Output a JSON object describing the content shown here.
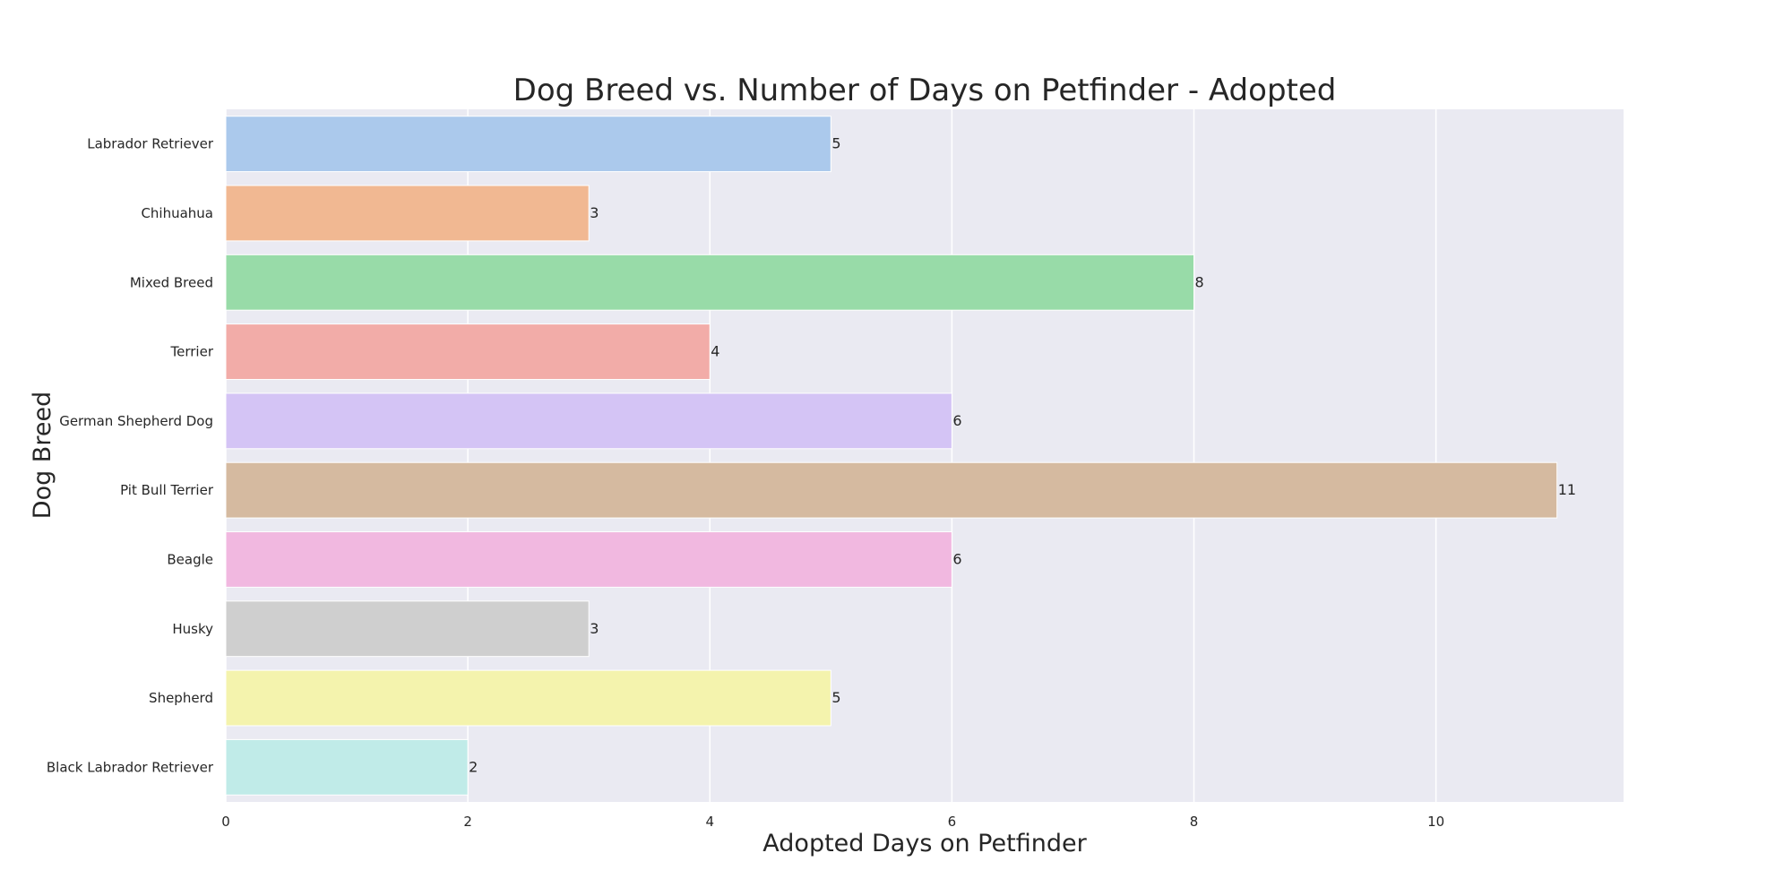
{
  "chart_data": {
    "type": "bar",
    "orientation": "horizontal",
    "title": "Dog Breed vs. Number of Days on Petfinder - Adopted",
    "xlabel": "Adopted Days on Petfinder",
    "ylabel": "Dog Breed",
    "categories": [
      "Labrador Retriever",
      "Chihuahua",
      "Mixed Breed",
      "Terrier",
      "German Shepherd Dog",
      "Pit Bull Terrier",
      "Beagle",
      "Husky",
      "Shepherd",
      "Black Labrador Retriever"
    ],
    "values": [
      5,
      3,
      8,
      4,
      6,
      11,
      6,
      3,
      5,
      2
    ],
    "data_labels": [
      "5",
      "3",
      "8",
      "4",
      "6",
      "11",
      "6",
      "3",
      "5",
      "2"
    ],
    "colors": [
      "#abc9ec",
      "#f1b892",
      "#98dba8",
      "#f2aca8",
      "#d4c4f5",
      "#d5baa0",
      "#f1b8e0",
      "#cfcfcf",
      "#f4f3ad",
      "#c0ebe8"
    ],
    "xlim": [
      0,
      11.55
    ],
    "xticks": [
      0,
      2,
      4,
      6,
      8,
      10
    ],
    "xtick_labels": [
      "0",
      "2",
      "4",
      "6",
      "8",
      "10"
    ],
    "grid": true,
    "background": "#eaeaf2",
    "grid_color": "#ffffff"
  }
}
